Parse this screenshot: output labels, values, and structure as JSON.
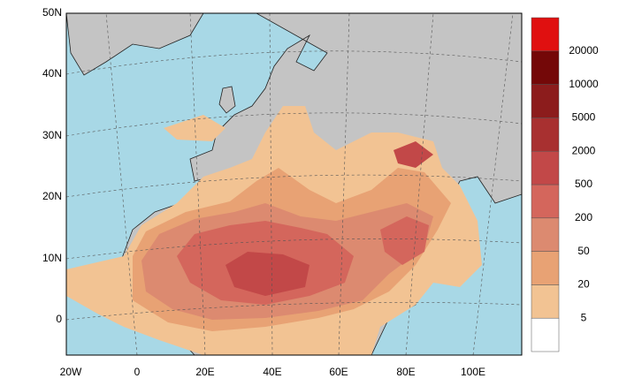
{
  "map": {
    "lat_labels": [
      "50N",
      "40N",
      "30N",
      "20N",
      "10N",
      "0"
    ],
    "lon_labels": [
      "20W",
      "0",
      "20E",
      "40E",
      "60E",
      "80E",
      "100E"
    ]
  },
  "colorbar": {
    "levels": [
      5,
      20,
      50,
      200,
      500,
      2000,
      5000,
      10000,
      20000
    ],
    "colors": [
      "#ffffff",
      "#f2c393",
      "#e8a274",
      "#dc8a70",
      "#d4665c",
      "#c24848",
      "#a83030",
      "#8c1c1c",
      "#740808",
      "#e01010"
    ]
  }
}
